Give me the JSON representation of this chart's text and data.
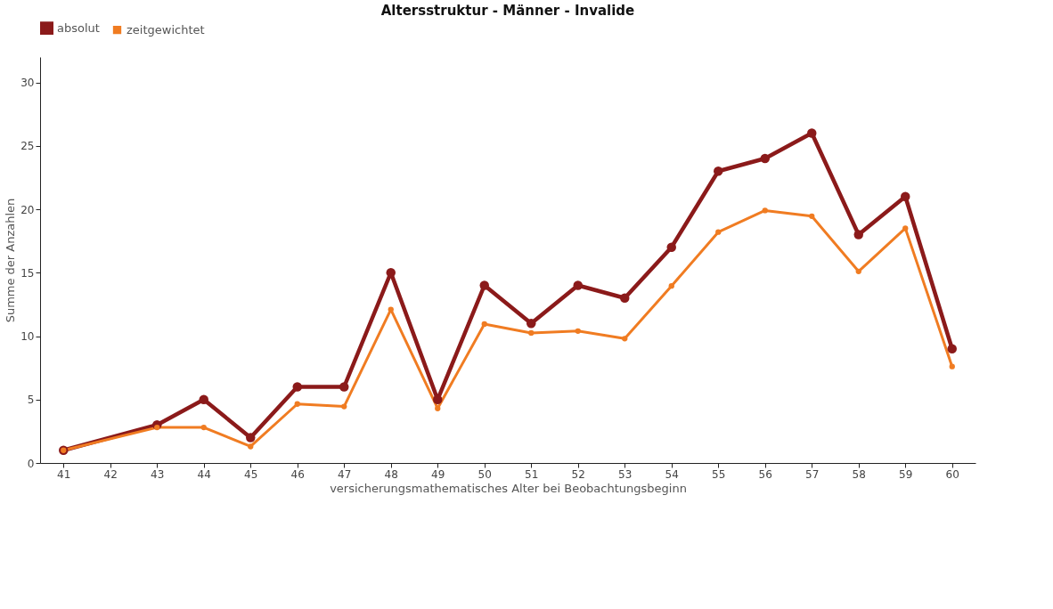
{
  "chart_data": {
    "type": "line",
    "title": "Altersstruktur - Männer - Invalide",
    "xlabel": "versicherungsmathematisches Alter bei Beobachtungsbeginn",
    "ylabel": "Summe der Anzahlen",
    "categories": [
      "41",
      "42",
      "43",
      "44",
      "45",
      "46",
      "47",
      "48",
      "49",
      "50",
      "51",
      "52",
      "53",
      "54",
      "55",
      "56",
      "57",
      "58",
      "59",
      "60"
    ],
    "series": [
      {
        "name": "absolut",
        "color": "#8b1a1a",
        "values": [
          1,
          null,
          3,
          5,
          2,
          6,
          6,
          15,
          5,
          14,
          11,
          14,
          13,
          17,
          23,
          24,
          26,
          18,
          21,
          9
        ]
      },
      {
        "name": "zeitgewichtet",
        "color": "#f07c22",
        "values": [
          1,
          null,
          2.8,
          2.8,
          1.3,
          4.65,
          4.45,
          12.1,
          4.3,
          10.95,
          10.25,
          10.4,
          9.8,
          13.95,
          18.2,
          19.9,
          19.45,
          15.1,
          18.5,
          7.6
        ]
      }
    ],
    "ylim": [
      0,
      32
    ],
    "yticks": [
      0,
      5,
      10,
      15,
      20,
      25,
      30
    ],
    "grid": false,
    "legend": "top",
    "marker": "circle",
    "line_style": "solid"
  }
}
